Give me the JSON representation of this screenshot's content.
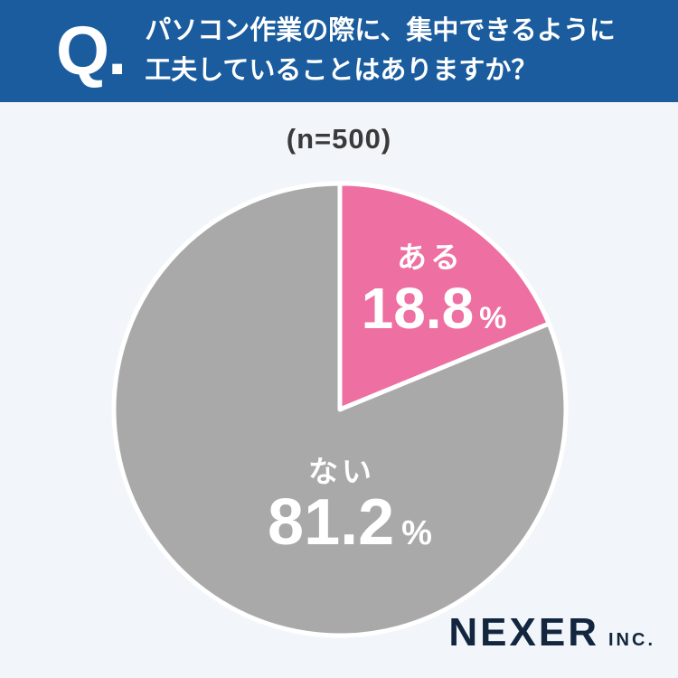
{
  "header": {
    "q_label": "Q.",
    "title_line1": "パソコン作業の際に、集中できるように",
    "title_line2": "工夫していることはありますか？"
  },
  "survey": {
    "sample_label": "(n=500)"
  },
  "chart_data": {
    "type": "pie",
    "title": "パソコン作業の際に、集中できるように工夫していることはありますか？",
    "sample_size_label": "(n=500)",
    "start_angle_deg": 0,
    "direction": "clockwise",
    "slices": [
      {
        "label": "ある",
        "value": 18.8,
        "unit": "%",
        "color": "#EE6FA2"
      },
      {
        "label": "ない",
        "value": 81.2,
        "unit": "%",
        "color": "#A9A9AA"
      }
    ],
    "legend_position": "none",
    "separator_color": "#FFFFFF"
  },
  "colors": {
    "header_bg": "#1A5C9E",
    "page_bg": "#F2F6FA",
    "logo_text": "#13263F",
    "n_label_text": "#3A3A3A"
  },
  "footer": {
    "logo_main": "NEXER",
    "logo_suffix": "INC."
  }
}
